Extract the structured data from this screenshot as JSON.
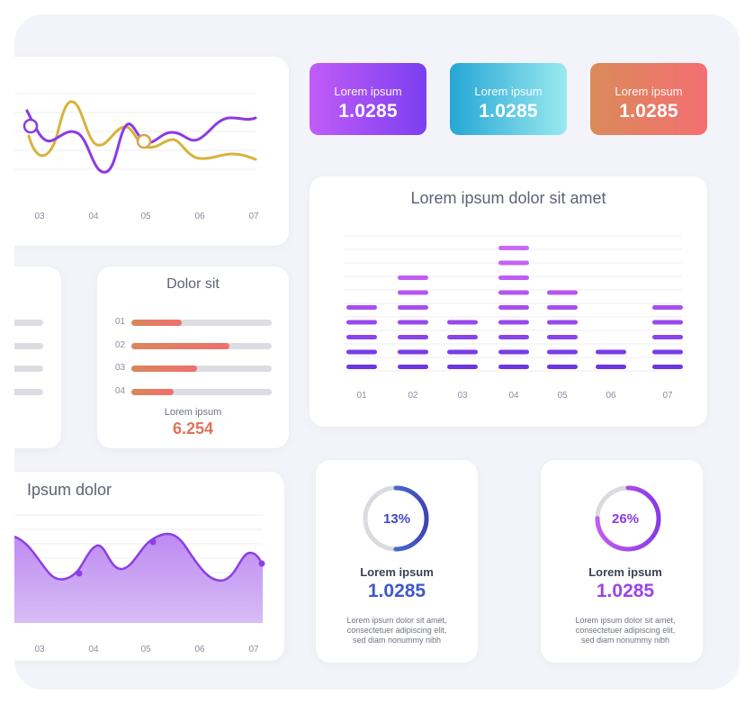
{
  "stats": [
    {
      "label": "Lorem ipsum",
      "value": "1.0285",
      "gradient": [
        "#c15cf8",
        "#7b3ff0"
      ]
    },
    {
      "label": "Lorem ipsum",
      "value": "1.0285",
      "gradient": [
        "#25a7d6",
        "#9ae9ee"
      ]
    },
    {
      "label": "Lorem ipsum",
      "value": "1.0285",
      "gradient": [
        "#da8a5a",
        "#f46f72"
      ]
    }
  ],
  "line_chart": {
    "x_ticks": [
      "03",
      "04",
      "05",
      "06",
      "07"
    ],
    "series_colors": [
      "#d7b33a",
      "#8a3ae6"
    ]
  },
  "progress_card": {
    "title": "Dolor sit",
    "rows": [
      {
        "label": "01",
        "value": 0.36
      },
      {
        "label": "02",
        "value": 0.7
      },
      {
        "label": "03",
        "value": 0.47
      },
      {
        "label": "04",
        "value": 0.3
      }
    ],
    "footer_label": "Lorem ipsum",
    "footer_value": "6.254"
  },
  "left_partial_card": {
    "bars": 4
  },
  "area_chart": {
    "title": "Ipsum dolor",
    "x_ticks": [
      "03",
      "04",
      "05",
      "06",
      "07"
    ],
    "color": "#8c4be8"
  },
  "equalizer_chart": {
    "title": "Lorem ipsum dolor sit amet",
    "categories": [
      "01",
      "02",
      "03",
      "04",
      "05",
      "06",
      "07"
    ],
    "values": [
      5,
      7,
      4,
      9,
      6,
      2,
      5
    ],
    "max": 9
  },
  "gauges": [
    {
      "percent_text": "13%",
      "percent": 13,
      "label": "Lorem ipsum",
      "value": "1.0285",
      "value_gradient": [
        "#3a3fb8",
        "#4f8fe0"
      ],
      "ring_color": "#4a6fe0",
      "description": [
        "Lorem ipsum dolor sit amet,",
        "consectetuer adipiscing elit,",
        "sed diam nonummy nibh"
      ]
    },
    {
      "percent_text": "26%",
      "percent": 26,
      "label": "Lorem ipsum",
      "value": "1.0285",
      "value_gradient": [
        "#8a3ae6",
        "#c05cf0"
      ],
      "ring_color": "#9a44ea",
      "description": [
        "Lorem ipsum dolor sit amet,",
        "consectetuer adipiscing elit,",
        "sed diam nonummy nibh"
      ]
    }
  ]
}
